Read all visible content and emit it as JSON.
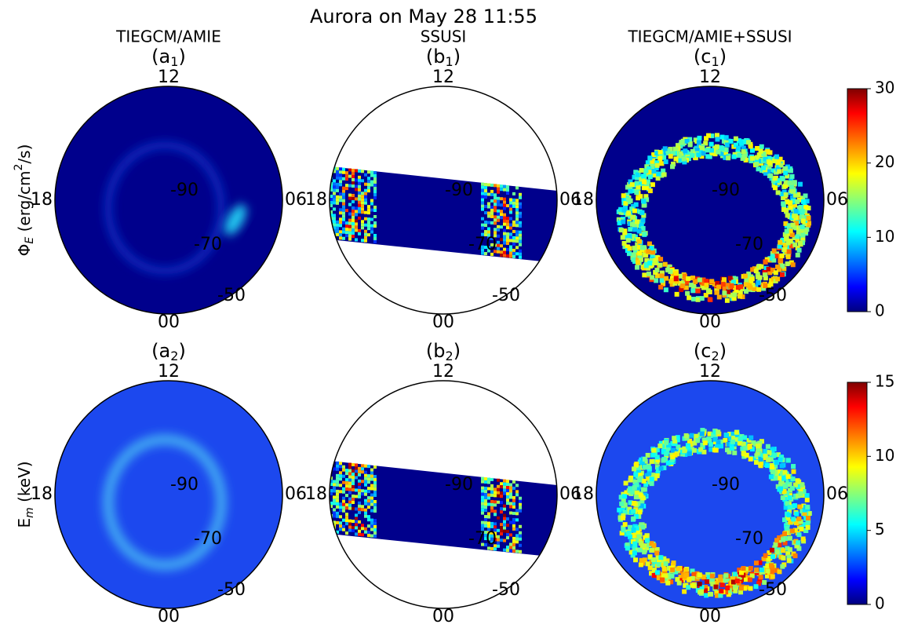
{
  "title": "Aurora on May 28 11:55",
  "columns": [
    "TIEGCM/AMIE",
    "SSUSI",
    "TIEGCM/AMIE+SSUSI"
  ],
  "panel_label": {
    "open": "(",
    "close": ")",
    "letters": [
      "a",
      "b",
      "c"
    ],
    "subscripts": [
      "1",
      "2"
    ]
  },
  "polar_labels": {
    "top": "12",
    "left": "18",
    "right": "06",
    "bottom": "00",
    "lat": [
      "-90",
      "-70",
      "-50"
    ]
  },
  "row_labels": [
    {
      "symbol": "Φ",
      "sub": "E",
      "text": " (erg/cm",
      "sup": "2",
      "end": "/s)"
    },
    {
      "symbol": "E",
      "sub": "m",
      "text": " (keV)"
    }
  ],
  "colorbars": [
    {
      "lim": [
        0,
        30
      ],
      "ticks": [
        0,
        10,
        20,
        30
      ]
    },
    {
      "lim": [
        0,
        15
      ],
      "ticks": [
        0,
        5,
        10,
        15
      ]
    }
  ]
}
